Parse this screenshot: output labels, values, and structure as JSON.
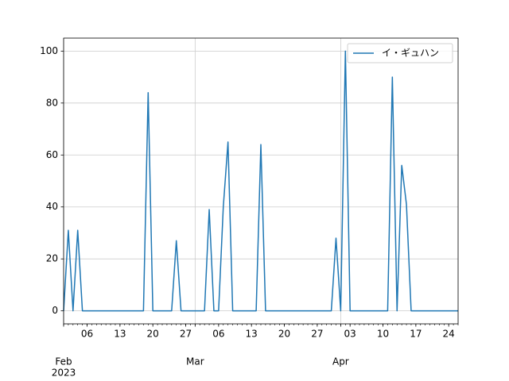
{
  "chart_data": {
    "type": "line",
    "x": [
      "2023-02-01",
      "2023-02-02",
      "2023-02-03",
      "2023-02-04",
      "2023-02-05",
      "2023-02-06",
      "2023-02-07",
      "2023-02-08",
      "2023-02-09",
      "2023-02-10",
      "2023-02-11",
      "2023-02-12",
      "2023-02-13",
      "2023-02-14",
      "2023-02-15",
      "2023-02-16",
      "2023-02-17",
      "2023-02-18",
      "2023-02-19",
      "2023-02-20",
      "2023-02-21",
      "2023-02-22",
      "2023-02-23",
      "2023-02-24",
      "2023-02-25",
      "2023-02-26",
      "2023-02-27",
      "2023-02-28",
      "2023-03-01",
      "2023-03-02",
      "2023-03-03",
      "2023-03-04",
      "2023-03-05",
      "2023-03-06",
      "2023-03-07",
      "2023-03-08",
      "2023-03-09",
      "2023-03-10",
      "2023-03-11",
      "2023-03-12",
      "2023-03-13",
      "2023-03-14",
      "2023-03-15",
      "2023-03-16",
      "2023-03-17",
      "2023-03-18",
      "2023-03-19",
      "2023-03-20",
      "2023-03-21",
      "2023-03-22",
      "2023-03-23",
      "2023-03-24",
      "2023-03-25",
      "2023-03-26",
      "2023-03-27",
      "2023-03-28",
      "2023-03-29",
      "2023-03-30",
      "2023-03-31",
      "2023-04-01",
      "2023-04-02",
      "2023-04-03",
      "2023-04-04",
      "2023-04-05",
      "2023-04-06",
      "2023-04-07",
      "2023-04-08",
      "2023-04-09",
      "2023-04-10",
      "2023-04-11",
      "2023-04-12",
      "2023-04-13",
      "2023-04-14",
      "2023-04-15",
      "2023-04-16",
      "2023-04-17",
      "2023-04-18",
      "2023-04-19",
      "2023-04-20",
      "2023-04-21",
      "2023-04-22",
      "2023-04-23",
      "2023-04-24",
      "2023-04-25",
      "2023-04-26"
    ],
    "series": [
      {
        "name": "イ・ギュハン",
        "color": "#1f77b4",
        "values": [
          0,
          31,
          0,
          31,
          0,
          0,
          0,
          0,
          0,
          0,
          0,
          0,
          0,
          0,
          0,
          0,
          0,
          0,
          84,
          0,
          0,
          0,
          0,
          0,
          27,
          0,
          0,
          0,
          0,
          0,
          0,
          39,
          0,
          0,
          40,
          65,
          0,
          0,
          0,
          0,
          0,
          0,
          64,
          0,
          0,
          0,
          0,
          0,
          0,
          0,
          0,
          0,
          0,
          0,
          0,
          0,
          0,
          0,
          28,
          0,
          100,
          0,
          0,
          0,
          0,
          0,
          0,
          0,
          0,
          0,
          90,
          0,
          56,
          41,
          0,
          0,
          0,
          0,
          0,
          0,
          0,
          0,
          0,
          0,
          0
        ]
      }
    ],
    "xlim": [
      "2023-02-01",
      "2023-04-26"
    ],
    "xticks": [
      {
        "value": "2023-02-01",
        "label": "Feb"
      },
      {
        "value": "2023-03-01",
        "label": "Mar"
      },
      {
        "value": "2023-04-01",
        "label": "Apr"
      }
    ],
    "x_minor_ticks": [
      {
        "value": "2023-02-06",
        "label": "06"
      },
      {
        "value": "2023-02-13",
        "label": "13"
      },
      {
        "value": "2023-02-20",
        "label": "20"
      },
      {
        "value": "2023-02-27",
        "label": "27"
      },
      {
        "value": "2023-03-06",
        "label": "06"
      },
      {
        "value": "2023-03-13",
        "label": "13"
      },
      {
        "value": "2023-03-20",
        "label": "20"
      },
      {
        "value": "2023-03-27",
        "label": "27"
      },
      {
        "value": "2023-04-03",
        "label": "03"
      },
      {
        "value": "2023-04-10",
        "label": "10"
      },
      {
        "value": "2023-04-17",
        "label": "17"
      },
      {
        "value": "2023-04-24",
        "label": "24"
      }
    ],
    "year_label": "2023",
    "ylim": [
      -5,
      105
    ],
    "yticks": [
      0,
      20,
      40,
      60,
      80,
      100
    ],
    "grid": true,
    "legend": "upper right"
  }
}
